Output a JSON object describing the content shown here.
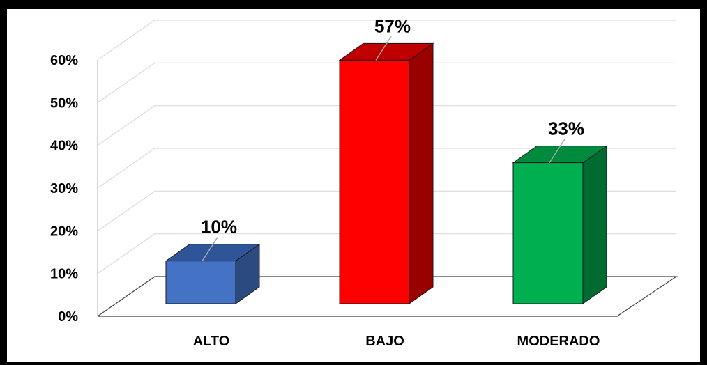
{
  "chart_data": {
    "type": "bar",
    "categories": [
      "ALTO",
      "BAJO",
      "MODERADO"
    ],
    "values": [
      10,
      57,
      33
    ],
    "data_labels": [
      "10%",
      "57%",
      "33%"
    ],
    "y_ticks": [
      "0%",
      "10%",
      "20%",
      "30%",
      "40%",
      "50%",
      "60%"
    ],
    "ylim": [
      0,
      60
    ],
    "grid": true,
    "three_d": true,
    "legend": "none",
    "colors": {
      "ALTO": {
        "front": "#4472C4",
        "top": "#2E5597",
        "side": "#2A4A80"
      },
      "BAJO": {
        "front": "#FF0000",
        "top": "#C00000",
        "side": "#990000"
      },
      "MODERADO": {
        "front": "#00B050",
        "top": "#008A3E",
        "side": "#006B30"
      }
    }
  }
}
